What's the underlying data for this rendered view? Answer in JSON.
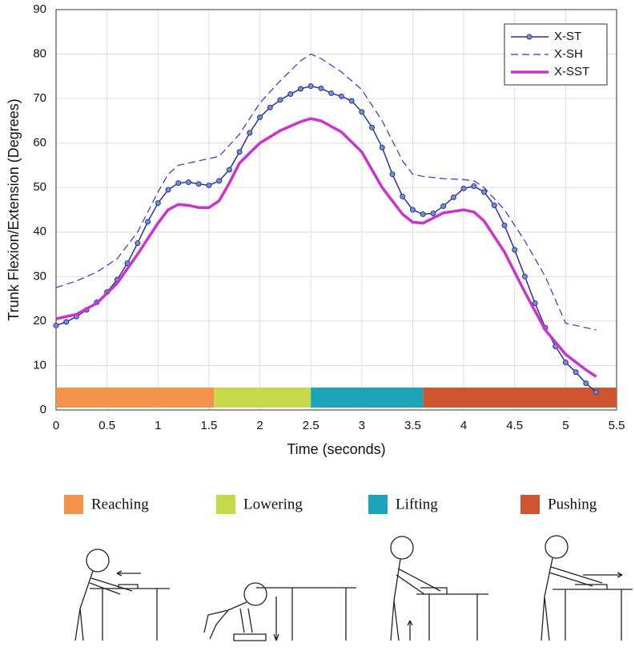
{
  "chart_data": {
    "type": "line",
    "xlabel": "Time (seconds)",
    "ylabel": "Trunk Flexion/Extension (Degrees)",
    "xlim": [
      0,
      5.5
    ],
    "ylim": [
      0,
      90
    ],
    "xticks": [
      0,
      0.5,
      1,
      1.5,
      2,
      2.5,
      3,
      3.5,
      4,
      4.5,
      5,
      5.5
    ],
    "yticks": [
      0,
      10,
      20,
      30,
      40,
      50,
      60,
      70,
      80,
      90
    ],
    "grid": true,
    "legend": "upper right",
    "series": [
      {
        "name": "X-ST",
        "color": "#2e3192",
        "style": "solid",
        "marker": true,
        "x": [
          0,
          0.1,
          0.2,
          0.3,
          0.4,
          0.5,
          0.6,
          0.7,
          0.8,
          0.9,
          1,
          1.1,
          1.2,
          1.3,
          1.4,
          1.5,
          1.6,
          1.7,
          1.8,
          1.9,
          2,
          2.1,
          2.2,
          2.3,
          2.4,
          2.5,
          2.6,
          2.7,
          2.8,
          2.9,
          3,
          3.1,
          3.2,
          3.3,
          3.4,
          3.5,
          3.6,
          3.7,
          3.8,
          3.9,
          4,
          4.1,
          4.2,
          4.3,
          4.4,
          4.5,
          4.6,
          4.7,
          4.8,
          4.9,
          5,
          5.1,
          5.2,
          5.3
        ],
        "values": [
          19,
          19.8,
          21,
          22.5,
          24.2,
          26.5,
          29.3,
          33,
          37.5,
          42.3,
          46.5,
          49.5,
          51,
          51.2,
          50.8,
          50.5,
          51.5,
          54,
          58,
          62.3,
          65.8,
          68,
          69.7,
          71,
          72.2,
          72.8,
          72.3,
          71.2,
          70.5,
          69.5,
          67,
          63.5,
          59,
          53,
          48,
          45,
          44,
          44.2,
          45.8,
          47.8,
          49.8,
          50.3,
          49,
          46,
          41.5,
          36,
          30,
          24,
          18.5,
          14.3,
          10.7,
          8.5,
          6,
          4
        ]
      },
      {
        "name": "X-SH",
        "color": "#3333cc",
        "style": "dashed",
        "marker": false,
        "x": [
          0,
          0.2,
          0.4,
          0.6,
          0.8,
          1,
          1.1,
          1.2,
          1.4,
          1.6,
          1.8,
          2,
          2.2,
          2.4,
          2.5,
          2.6,
          2.8,
          3,
          3.2,
          3.4,
          3.5,
          3.6,
          3.8,
          4,
          4.1,
          4.2,
          4.4,
          4.6,
          4.8,
          5,
          5.1,
          5.2,
          5.3
        ],
        "values": [
          27.5,
          29,
          31,
          34,
          40,
          49,
          53,
          55,
          56,
          57,
          62,
          69,
          74,
          78.5,
          80,
          79,
          76,
          72,
          65,
          56,
          53,
          52.5,
          52,
          51.8,
          51.5,
          50,
          45,
          38,
          30,
          19.5,
          19,
          18.5,
          18
        ]
      },
      {
        "name": "X-SST",
        "color": "#cc33cc",
        "style": "thick",
        "marker": false,
        "x": [
          0,
          0.2,
          0.4,
          0.6,
          0.8,
          1,
          1.1,
          1.2,
          1.3,
          1.4,
          1.5,
          1.6,
          1.7,
          1.8,
          2,
          2.2,
          2.4,
          2.5,
          2.6,
          2.8,
          3,
          3.2,
          3.4,
          3.5,
          3.6,
          3.8,
          4,
          4.1,
          4.2,
          4.4,
          4.6,
          4.8,
          5,
          5.2,
          5.3
        ],
        "values": [
          20.5,
          21.5,
          24,
          28.5,
          35,
          42,
          45,
          46.2,
          46,
          45.5,
          45.5,
          47,
          51,
          55.5,
          60,
          62.8,
          64.8,
          65.5,
          65,
          62.5,
          58,
          50,
          44,
          42.2,
          42,
          44.3,
          45,
          44.5,
          42.5,
          35.5,
          26.5,
          18,
          12.5,
          9,
          7.5
        ]
      }
    ],
    "phases": [
      {
        "name": "Reaching",
        "color": "#f5934a",
        "start": 0,
        "end": 1.55
      },
      {
        "name": "Lowering",
        "color": "#c5d94a",
        "start": 1.55,
        "end": 2.5
      },
      {
        "name": "Lifting",
        "color": "#1ca5b8",
        "start": 2.5,
        "end": 3.6
      },
      {
        "name": "Pushing",
        "color": "#cf5530",
        "start": 3.6,
        "end": 5.5
      }
    ]
  }
}
